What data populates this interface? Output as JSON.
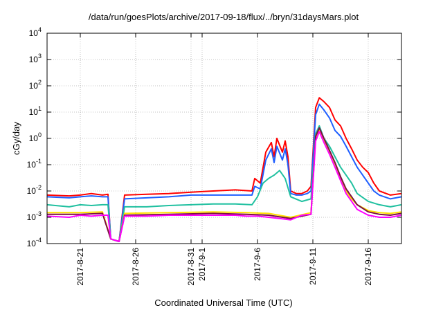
{
  "chart_data": {
    "type": "line",
    "title": "/data/run/goesPlots/archive/2017-09-18/flux/../bryn/31daysMars.plot",
    "xlabel": "Coordinated Universal Time (UTC)",
    "ylabel": "cGy/day",
    "y_scale": "log",
    "ylim": [
      0.0001,
      10000
    ],
    "y_ticks": [
      {
        "value": 0.0001,
        "base": "10",
        "exp": "-4"
      },
      {
        "value": 0.001,
        "base": "10",
        "exp": "-3"
      },
      {
        "value": 0.01,
        "base": "10",
        "exp": "-2"
      },
      {
        "value": 0.1,
        "base": "10",
        "exp": "-1"
      },
      {
        "value": 1,
        "base": "10",
        "exp": "0"
      },
      {
        "value": 10,
        "base": "10",
        "exp": "1"
      },
      {
        "value": 100,
        "base": "10",
        "exp": "2"
      },
      {
        "value": 1000,
        "base": "10",
        "exp": "3"
      },
      {
        "value": 10000,
        "base": "10",
        "exp": "4"
      }
    ],
    "xlim": [
      "2017-08-18",
      "2017-09-19"
    ],
    "x_ticks": [
      "2017-8-21",
      "2017-8-26",
      "2017-8-31",
      "2017-9-1",
      "2017-9-6",
      "2017-9-11",
      "2017-9-16"
    ],
    "grid": true,
    "series": [
      {
        "color": "#ff0000",
        "x": [
          "2017-08-18",
          "2017-08-20",
          "2017-08-21",
          "2017-08-22",
          "2017-08-23",
          "2017-08-23 12:00",
          "2017-08-23 18:00",
          "2017-08-24 12:00",
          "2017-08-25",
          "2017-08-27",
          "2017-08-29",
          "2017-08-31",
          "2017-09-02",
          "2017-09-04",
          "2017-09-05 12:00",
          "2017-09-05 18:00",
          "2017-09-06 06:00",
          "2017-09-06 18:00",
          "2017-09-07 06:00",
          "2017-09-07 12:00",
          "2017-09-07 18:00",
          "2017-09-08 06:00",
          "2017-09-08 12:00",
          "2017-09-08 18:00",
          "2017-09-09",
          "2017-09-09 12:00",
          "2017-09-10",
          "2017-09-10 12:00",
          "2017-09-10 20:00",
          "2017-09-11 06:00",
          "2017-09-11 14:00",
          "2017-09-12",
          "2017-09-12 12:00",
          "2017-09-13",
          "2017-09-13 12:00",
          "2017-09-14",
          "2017-09-14 12:00",
          "2017-09-15",
          "2017-09-15 12:00",
          "2017-09-16",
          "2017-09-16 12:00",
          "2017-09-17",
          "2017-09-18",
          "2017-09-19"
        ],
        "y": [
          0.007,
          0.0065,
          0.007,
          0.008,
          0.007,
          0.0075,
          0.00015,
          0.00012,
          0.007,
          0.0075,
          0.008,
          0.009,
          0.01,
          0.011,
          0.01,
          0.03,
          0.02,
          0.3,
          0.7,
          0.2,
          1,
          0.3,
          0.8,
          0.2,
          0.01,
          0.008,
          0.008,
          0.01,
          0.015,
          15,
          35,
          25,
          15,
          5,
          3,
          1,
          0.4,
          0.15,
          0.08,
          0.05,
          0.02,
          0.01,
          0.007,
          0.008
        ]
      },
      {
        "color": "#1f5fff",
        "x": [
          "2017-08-18",
          "2017-08-20",
          "2017-08-21",
          "2017-08-22",
          "2017-08-23",
          "2017-08-23 12:00",
          "2017-08-23 18:00",
          "2017-08-24 12:00",
          "2017-08-25",
          "2017-08-27",
          "2017-08-29",
          "2017-08-31",
          "2017-09-02",
          "2017-09-04",
          "2017-09-05 12:00",
          "2017-09-05 18:00",
          "2017-09-06 06:00",
          "2017-09-06 18:00",
          "2017-09-07 06:00",
          "2017-09-07 12:00",
          "2017-09-07 18:00",
          "2017-09-08 06:00",
          "2017-09-08 12:00",
          "2017-09-08 18:00",
          "2017-09-09",
          "2017-09-09 12:00",
          "2017-09-10",
          "2017-09-10 12:00",
          "2017-09-10 20:00",
          "2017-09-11 06:00",
          "2017-09-11 14:00",
          "2017-09-12",
          "2017-09-12 12:00",
          "2017-09-13",
          "2017-09-13 12:00",
          "2017-09-14",
          "2017-09-14 12:00",
          "2017-09-15",
          "2017-09-15 12:00",
          "2017-09-16",
          "2017-09-16 12:00",
          "2017-09-17",
          "2017-09-18",
          "2017-09-19"
        ],
        "y": [
          0.006,
          0.0055,
          0.006,
          0.0065,
          0.006,
          0.006,
          0.00015,
          0.00012,
          0.005,
          0.0055,
          0.006,
          0.007,
          0.007,
          0.007,
          0.007,
          0.015,
          0.012,
          0.15,
          0.4,
          0.12,
          0.5,
          0.15,
          0.4,
          0.1,
          0.008,
          0.007,
          0.007,
          0.008,
          0.01,
          8,
          20,
          12,
          6,
          2,
          1.2,
          0.5,
          0.2,
          0.08,
          0.04,
          0.02,
          0.01,
          0.007,
          0.005,
          0.006
        ]
      },
      {
        "color": "#20c0a0",
        "x": [
          "2017-08-18",
          "2017-08-20",
          "2017-08-21",
          "2017-08-22",
          "2017-08-23",
          "2017-08-23 12:00",
          "2017-08-23 18:00",
          "2017-08-24 12:00",
          "2017-08-25",
          "2017-08-27",
          "2017-08-29",
          "2017-08-31",
          "2017-09-02",
          "2017-09-04",
          "2017-09-05 12:00",
          "2017-09-06",
          "2017-09-06 12:00",
          "2017-09-07",
          "2017-09-07 12:00",
          "2017-09-08",
          "2017-09-08 12:00",
          "2017-09-09",
          "2017-09-10",
          "2017-09-10 20:00",
          "2017-09-11 06:00",
          "2017-09-11 14:00",
          "2017-09-12",
          "2017-09-12 12:00",
          "2017-09-13",
          "2017-09-13 12:00",
          "2017-09-14",
          "2017-09-14 12:00",
          "2017-09-15",
          "2017-09-16",
          "2017-09-17",
          "2017-09-18",
          "2017-09-19"
        ],
        "y": [
          0.003,
          0.0025,
          0.003,
          0.0028,
          0.003,
          0.003,
          0.00015,
          0.00012,
          0.0025,
          0.0025,
          0.0028,
          0.003,
          0.0032,
          0.0032,
          0.003,
          0.006,
          0.02,
          0.03,
          0.04,
          0.06,
          0.03,
          0.006,
          0.004,
          0.005,
          1.5,
          3,
          1,
          0.5,
          0.2,
          0.08,
          0.04,
          0.02,
          0.008,
          0.004,
          0.003,
          0.0025,
          0.003
        ]
      },
      {
        "color": "#ffe000",
        "x": [
          "2017-08-18",
          "2017-08-21",
          "2017-08-23",
          "2017-08-23 18:00",
          "2017-08-24 12:00",
          "2017-08-25",
          "2017-08-29",
          "2017-09-02",
          "2017-09-05",
          "2017-09-07",
          "2017-09-09",
          "2017-09-10 20:00",
          "2017-09-11 06:00",
          "2017-09-11 14:00",
          "2017-09-12",
          "2017-09-12 12:00",
          "2017-09-13",
          "2017-09-13 12:00",
          "2017-09-14",
          "2017-09-14 12:00",
          "2017-09-15",
          "2017-09-16",
          "2017-09-17",
          "2017-09-18",
          "2017-09-19"
        ],
        "y": [
          0.0015,
          0.0015,
          0.0016,
          0.00015,
          0.00012,
          0.0014,
          0.0015,
          0.0016,
          0.0015,
          0.0014,
          0.001,
          0.0015,
          1,
          2,
          0.8,
          0.3,
          0.1,
          0.03,
          0.01,
          0.005,
          0.003,
          0.0018,
          0.0015,
          0.0014,
          0.0016
        ]
      },
      {
        "color": "#7a1040",
        "x": [
          "2017-08-18",
          "2017-08-21",
          "2017-08-23",
          "2017-08-23 18:00",
          "2017-08-24 12:00",
          "2017-08-25",
          "2017-08-29",
          "2017-09-02",
          "2017-09-05",
          "2017-09-07",
          "2017-09-09",
          "2017-09-10 20:00",
          "2017-09-11 06:00",
          "2017-09-11 14:00",
          "2017-09-12",
          "2017-09-12 12:00",
          "2017-09-13",
          "2017-09-13 12:00",
          "2017-09-14",
          "2017-09-14 12:00",
          "2017-09-15",
          "2017-09-16",
          "2017-09-17",
          "2017-09-18",
          "2017-09-19"
        ],
        "y": [
          0.0013,
          0.0013,
          0.0014,
          0.00015,
          0.00012,
          0.0012,
          0.0013,
          0.0014,
          0.0013,
          0.0012,
          0.0009,
          0.0013,
          1.2,
          2.5,
          1,
          0.35,
          0.12,
          0.035,
          0.012,
          0.006,
          0.003,
          0.0016,
          0.0013,
          0.0012,
          0.0014
        ]
      },
      {
        "color": "#ff00ff",
        "x": [
          "2017-08-18",
          "2017-08-20",
          "2017-08-21",
          "2017-08-22",
          "2017-08-23",
          "2017-08-23 12:00",
          "2017-08-23 18:00",
          "2017-08-24 12:00",
          "2017-08-25",
          "2017-08-27",
          "2017-08-29",
          "2017-08-31",
          "2017-09-02",
          "2017-09-04",
          "2017-09-05",
          "2017-09-06",
          "2017-09-07",
          "2017-09-08",
          "2017-09-09",
          "2017-09-10",
          "2017-09-10 20:00",
          "2017-09-11 06:00",
          "2017-09-11 14:00",
          "2017-09-12",
          "2017-09-12 12:00",
          "2017-09-13",
          "2017-09-13 12:00",
          "2017-09-14",
          "2017-09-14 12:00",
          "2017-09-15",
          "2017-09-16",
          "2017-09-17",
          "2017-09-18",
          "2017-09-19"
        ],
        "y": [
          0.0011,
          0.001,
          0.0012,
          0.0011,
          0.0012,
          0.0012,
          0.00015,
          0.00012,
          0.0011,
          0.0011,
          0.0012,
          0.0012,
          0.0012,
          0.0012,
          0.0011,
          0.0011,
          0.001,
          0.0009,
          0.0008,
          0.0012,
          0.0013,
          0.8,
          1.8,
          0.7,
          0.25,
          0.08,
          0.025,
          0.008,
          0.004,
          0.002,
          0.0012,
          0.001,
          0.001,
          0.0012
        ]
      }
    ]
  }
}
